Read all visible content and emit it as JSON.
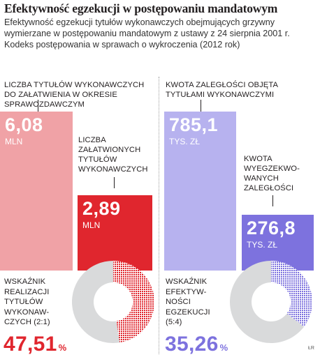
{
  "title": "Efektywność egzekucji w postępowaniu mandatowym",
  "subtitle": "Efektywność egzekucji tytułów wykonawczych obejmujących grzywny wymierzane w postępowaniu mandatowym z ustawy z 24 sierpnia 2001 r. Kodeks postępowania w sprawach o wykroczenia (2012 rok)",
  "colors": {
    "red_dark": "#e0262e",
    "red_light": "#f0a2a6",
    "purple_dark": "#7d72de",
    "purple_light": "#b7b2ef",
    "donut_gray": "#d9dadb"
  },
  "chart_data": [
    {
      "type": "bar",
      "categories": [
        "LICZBA TYTUŁÓW WYKONAWCZYCH DO ZAŁATWIENIA W OKRESIE SPRAWOZDAWCZYM",
        "LICZBA ZAŁATWIONYCH TYTUŁÓW WYKONAWCZYCH"
      ],
      "values": [
        6.08,
        2.89
      ],
      "value_labels": [
        "6,08",
        "2,89"
      ],
      "unit": "MLN"
    },
    {
      "type": "pie",
      "label": "WSKAŹNIK REALIZACJI TYTUŁÓW WYKONAW-CZYCH (2:1)",
      "value": 47.51,
      "value_label": "47,51",
      "unit": "%"
    },
    {
      "type": "bar",
      "categories": [
        "KWOTA ZALEGŁOŚCI OBJĘTA TYTUŁAMI WYKONAWCZYMI",
        "KWOTA WYEGZEKWO-WANYCH ZALEGŁOŚCI"
      ],
      "values": [
        785.1,
        276.8
      ],
      "value_labels": [
        "785,1",
        "276,8"
      ],
      "unit": "TYS. ZŁ"
    },
    {
      "type": "pie",
      "label": "WSKAŹNIK EFEKTYW-NOŚCI EGZEKUCJI (5:4)",
      "value": 35.26,
      "value_label": "35,26",
      "unit": "%"
    }
  ],
  "left": {
    "bar1_label": "LICZBA TYTUŁÓW WYKONAWCZYCH DO ZAŁATWIENIA W OKRESIE SPRAWOZDAWCZYM",
    "bar2_label": [
      "LICZBA",
      "ZAŁATWIONYCH",
      "TYTUŁÓW",
      "WYKONAWCZYCH"
    ],
    "donut_label": [
      "WSKAŹNIK",
      "REALIZACJI",
      "TYTUŁÓW",
      "WYKONAW-",
      "CZYCH (2:1)"
    ]
  },
  "right": {
    "bar1_label": "KWOTA ZALEGŁOŚCI OBJĘTA TYTUŁAMI WYKONAWCZYMI",
    "bar2_label": [
      "KWOTA",
      "WYEGZEKWO-",
      "WANYCH",
      "ZALEGŁOŚCI"
    ],
    "donut_label": [
      "WSKAŹNIK",
      "EFEKTYW-",
      "NOŚCI",
      "EGZEKUCJI",
      "(5:4)"
    ]
  },
  "credit": "ŁR"
}
